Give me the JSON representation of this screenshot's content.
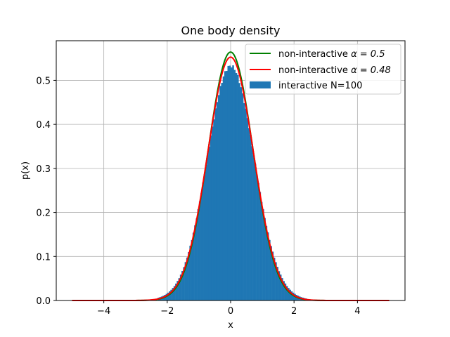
{
  "chart_data": {
    "type": "histogram",
    "title": "One body density",
    "xlabel": "x",
    "ylabel": "p(x)",
    "xlim": [
      -5.5,
      5.5
    ],
    "ylim": [
      0,
      0.59
    ],
    "xticks": [
      -4,
      -2,
      0,
      2,
      4
    ],
    "yticks": [
      0.0,
      0.1,
      0.2,
      0.3,
      0.4,
      0.5
    ],
    "xtick_labels": [
      "−4",
      "−2",
      "0",
      "2",
      "4"
    ],
    "ytick_labels": [
      "0.0",
      "0.1",
      "0.2",
      "0.3",
      "0.4",
      "0.5"
    ],
    "grid": true,
    "legend_position": "top-right",
    "series": [
      {
        "name": "non-interactive α = 0.5",
        "name_prefix": "non-interactive ",
        "name_math": "α = 0.5",
        "type": "line",
        "color": "#008000",
        "function": "sqrt(2*alpha/pi)*exp(-2*alpha*x^2)",
        "alpha": 0.5,
        "x_range": [
          -5,
          5
        ]
      },
      {
        "name": "non-interactive α = 0.48",
        "name_prefix": "non-interactive ",
        "name_math": "α = 0.48",
        "type": "line",
        "color": "#ff0000",
        "function": "sqrt(2*alpha/pi)*exp(-2*alpha*x^2)",
        "alpha": 0.48,
        "x_range": [
          -5,
          5
        ]
      },
      {
        "name": "interactive N=100",
        "type": "histogram",
        "color": "#1f77b4",
        "bin_range": [
          -2.3,
          2.4
        ],
        "bin_width": 0.05,
        "density_shape": {
          "peak": 0.533,
          "sigma": 0.735,
          "tail_extra": 0.012
        }
      }
    ]
  }
}
